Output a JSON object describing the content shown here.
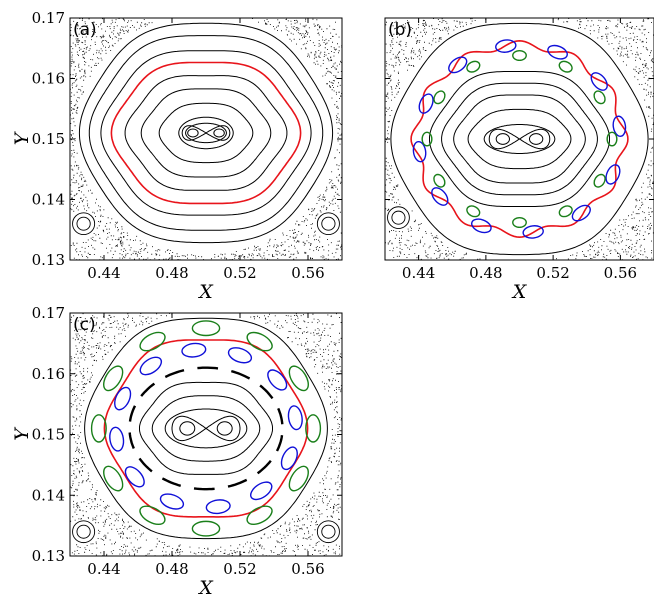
{
  "figure": {
    "colors": {
      "red": "#e8141b",
      "green": "#1a7f1a",
      "blue": "#1010d8",
      "black": "#000000"
    }
  },
  "chart_data": [
    {
      "type": "scatter",
      "panel_label": "(a)",
      "xlabel": "X",
      "ylabel": "Y",
      "xlim": [
        0.42,
        0.58
      ],
      "ylim": [
        0.13,
        0.17
      ],
      "xticks": [
        "0.44",
        "0.48",
        "0.52",
        "0.56"
      ],
      "yticks": [
        "0.13",
        "0.14",
        "0.15",
        "0.16",
        "0.17"
      ],
      "center": [
        0.5,
        0.151
      ],
      "figure_eight": {
        "half_width": 0.014,
        "height": 0.0012
      },
      "tori": [
        {
          "rx": 0.012,
          "ry": 0.0016,
          "k": 0,
          "amp": 0,
          "color": "black"
        },
        {
          "rx": 0.016,
          "ry": 0.0026,
          "k": 0,
          "amp": 0,
          "color": "black"
        },
        {
          "rx": 0.027,
          "ry": 0.005,
          "k": 6,
          "amp": 0.02,
          "color": "black"
        },
        {
          "rx": 0.037,
          "ry": 0.0075,
          "k": 6,
          "amp": 0.03,
          "color": "black"
        },
        {
          "rx": 0.046,
          "ry": 0.0098,
          "k": 6,
          "amp": 0.035,
          "color": "black"
        },
        {
          "rx": 0.054,
          "ry": 0.012,
          "k": 6,
          "amp": 0.03,
          "color": "red"
        },
        {
          "rx": 0.06,
          "ry": 0.014,
          "k": 6,
          "amp": 0.03,
          "color": "black"
        },
        {
          "rx": 0.067,
          "ry": 0.0165,
          "k": 6,
          "amp": 0.025,
          "color": "black"
        },
        {
          "rx": 0.073,
          "ry": 0.0185,
          "k": 6,
          "amp": 0.02,
          "color": "black"
        }
      ],
      "island_chains": [],
      "corner_islands": [
        [
          0.428,
          0.136
        ],
        [
          0.572,
          0.136
        ]
      ],
      "sea": {
        "inner_rx": 0.077,
        "inner_ry": 0.02
      }
    },
    {
      "type": "scatter",
      "panel_label": "(b)",
      "xlabel": "X",
      "ylabel": "",
      "xlim": [
        0.42,
        0.58
      ],
      "ylim": [
        0.13,
        0.17
      ],
      "xticks": [
        "0.44",
        "0.48",
        "0.52",
        "0.56"
      ],
      "yticks": [],
      "center": [
        0.5,
        0.15
      ],
      "figure_eight": {
        "half_width": 0.018,
        "height": 0.0016
      },
      "tori": [
        {
          "rx": 0.021,
          "ry": 0.0024,
          "k": 0,
          "amp": 0,
          "color": "black"
        },
        {
          "rx": 0.03,
          "ry": 0.005,
          "k": 6,
          "amp": 0.02,
          "color": "black"
        },
        {
          "rx": 0.038,
          "ry": 0.0075,
          "k": 6,
          "amp": 0.03,
          "color": "black"
        },
        {
          "rx": 0.045,
          "ry": 0.0095,
          "k": 6,
          "amp": 0.03,
          "color": "black"
        },
        {
          "rx": 0.052,
          "ry": 0.0115,
          "k": 6,
          "amp": 0.03,
          "color": "black"
        },
        {
          "rx": 0.062,
          "ry": 0.0156,
          "k": 12,
          "amp": 0.04,
          "color": "red"
        },
        {
          "rx": 0.075,
          "ry": 0.0195,
          "k": 6,
          "amp": 0.02,
          "color": "black"
        }
      ],
      "island_chains": [
        {
          "rx": 0.06,
          "ry": 0.0155,
          "count": 12,
          "phase": 0.26,
          "size_x": 0.006,
          "size_y": 0.001,
          "color": "blue"
        },
        {
          "rx": 0.055,
          "ry": 0.0138,
          "count": 12,
          "phase": 0.0,
          "size_x": 0.004,
          "size_y": 0.0008,
          "color": "green"
        }
      ],
      "corner_islands": [
        [
          0.428,
          0.137
        ]
      ],
      "sea": {
        "inner_rx": 0.078,
        "inner_ry": 0.0205
      }
    },
    {
      "type": "scatter",
      "panel_label": "(c)",
      "xlabel": "X",
      "ylabel": "Y",
      "xlim": [
        0.42,
        0.58
      ],
      "ylim": [
        0.13,
        0.17
      ],
      "xticks": [
        "0.44",
        "0.48",
        "0.52",
        "0.56"
      ],
      "yticks": [
        "0.13",
        "0.14",
        "0.15",
        "0.16",
        "0.17"
      ],
      "center": [
        0.5,
        0.151
      ],
      "figure_eight": {
        "half_width": 0.02,
        "height": 0.002
      },
      "tori": [
        {
          "rx": 0.024,
          "ry": 0.0032,
          "k": 0,
          "amp": 0,
          "color": "black"
        },
        {
          "rx": 0.031,
          "ry": 0.0055,
          "k": 6,
          "amp": 0.02,
          "color": "black"
        },
        {
          "rx": 0.038,
          "ry": 0.0078,
          "k": 6,
          "amp": 0.03,
          "color": "black"
        },
        {
          "rx": 0.058,
          "ry": 0.015,
          "k": 6,
          "amp": 0.03,
          "color": "red"
        },
        {
          "rx": 0.07,
          "ry": 0.0185,
          "k": 6,
          "amp": 0.02,
          "color": "black"
        }
      ],
      "dashed_ring": {
        "rx": 0.045,
        "ry": 0.01,
        "count": 14
      },
      "island_chains": [
        {
          "rx": 0.053,
          "ry": 0.013,
          "count": 12,
          "phase": 0.26,
          "size_x": 0.007,
          "size_y": 0.0011,
          "color": "blue"
        },
        {
          "rx": 0.063,
          "ry": 0.0165,
          "count": 12,
          "phase": 0.0,
          "size_x": 0.008,
          "size_y": 0.0012,
          "color": "green"
        }
      ],
      "corner_islands": [
        [
          0.428,
          0.134
        ],
        [
          0.572,
          0.134
        ]
      ],
      "sea": {
        "inner_rx": 0.074,
        "inner_ry": 0.0195
      }
    }
  ]
}
